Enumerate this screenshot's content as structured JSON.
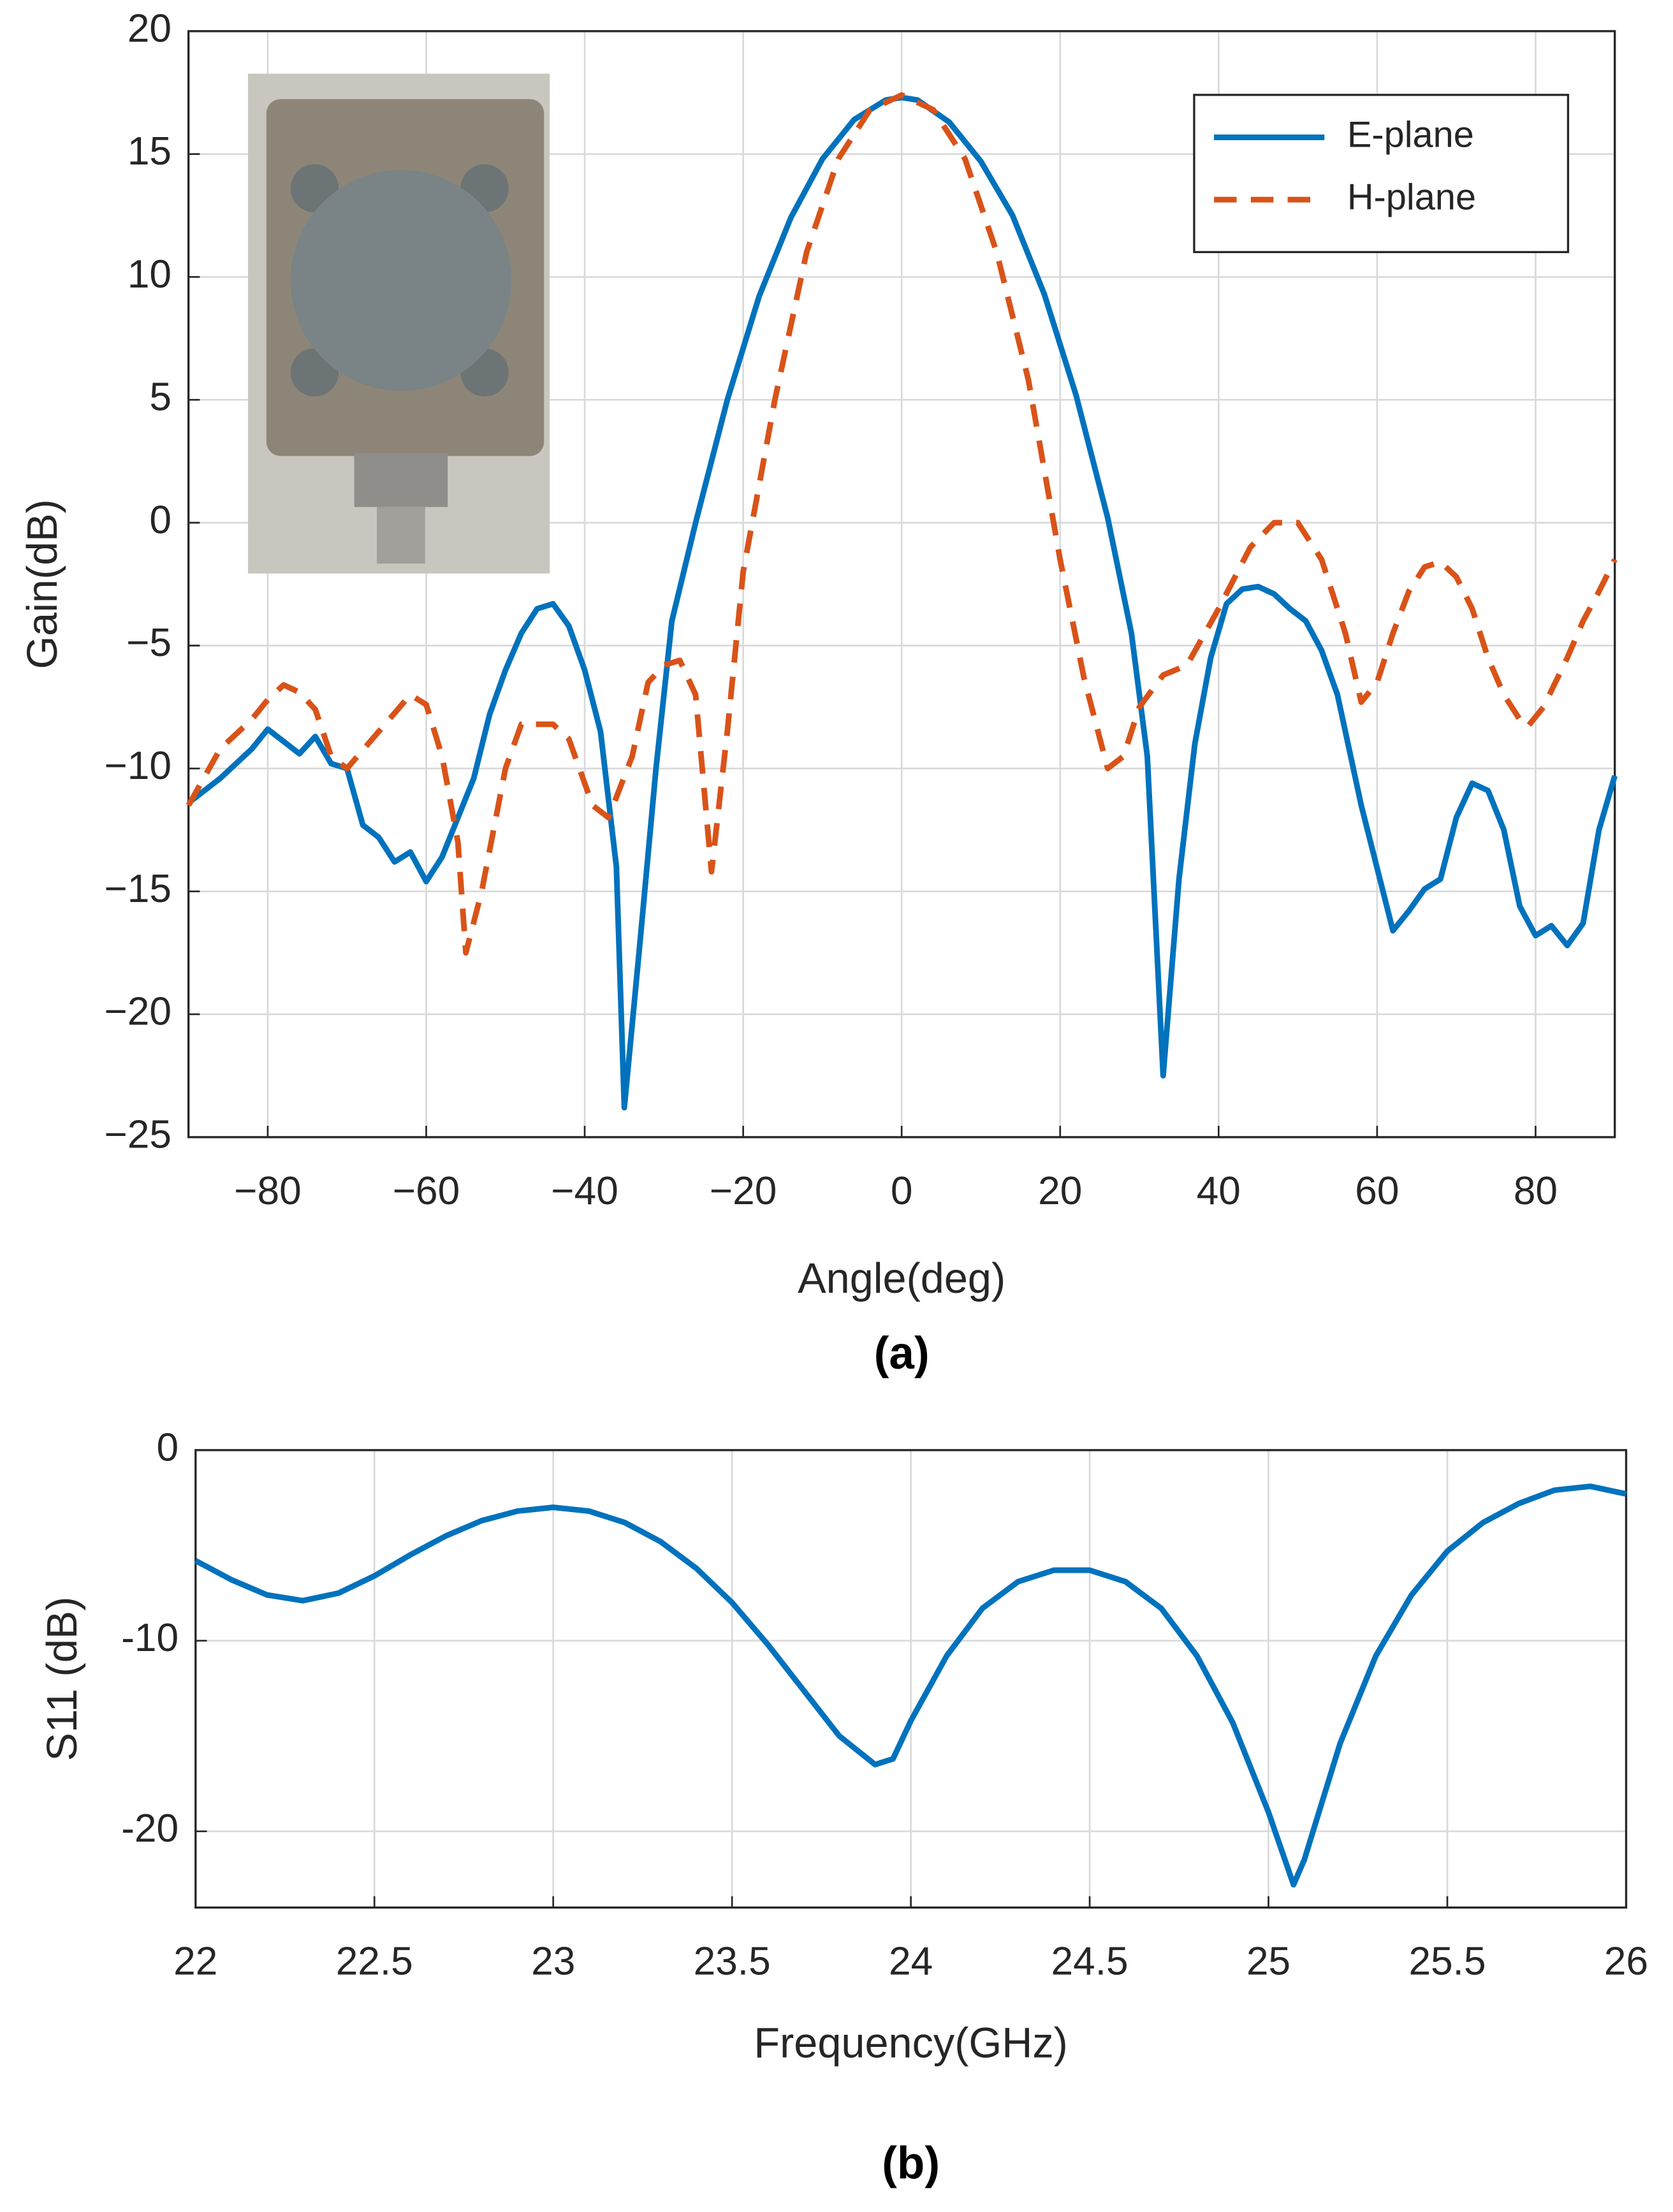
{
  "chart_data": [
    {
      "type": "line",
      "xlabel": "Angle(deg)",
      "ylabel": "Gain(dB)",
      "caption": "(a)",
      "xlim": [
        -90,
        90
      ],
      "ylim": [
        -25,
        20
      ],
      "xticks": [
        {
          "value": -80,
          "label": "−80"
        },
        {
          "value": -60,
          "label": "−60"
        },
        {
          "value": -40,
          "label": "−40"
        },
        {
          "value": -20,
          "label": "−20"
        },
        0,
        20,
        40,
        60,
        80
      ],
      "yticks": [
        {
          "value": -25,
          "label": "−25"
        },
        {
          "value": -20,
          "label": "−20"
        },
        {
          "value": -15,
          "label": "−15"
        },
        {
          "value": -10,
          "label": "−10"
        },
        {
          "value": -5,
          "label": "−5"
        },
        0,
        5,
        10,
        15,
        20
      ],
      "grid": true,
      "legend": "upper right",
      "series": [
        {
          "name": "E-plane",
          "color": "#0072bd",
          "dash": false,
          "x": [
            -90,
            -86,
            -82,
            -80,
            -76,
            -74,
            -72,
            -70,
            -68,
            -66,
            -64,
            -62,
            -60,
            -58,
            -56,
            -54,
            -52,
            -50,
            -48,
            -46,
            -44,
            -42,
            -40,
            -38,
            -36,
            -35,
            -33,
            -31,
            -29,
            -26,
            -22,
            -18,
            -14,
            -10,
            -6,
            -2,
            0,
            2,
            6,
            10,
            14,
            18,
            22,
            26,
            29,
            31,
            33,
            35,
            37,
            39,
            41,
            43,
            45,
            47,
            49,
            51,
            53,
            55,
            58,
            62,
            64,
            66,
            68,
            70,
            72,
            74,
            76,
            78,
            80,
            82,
            84,
            86,
            88,
            90
          ],
          "values": [
            -11.4,
            -10.4,
            -9.2,
            -8.4,
            -9.4,
            -8.7,
            -9.8,
            -10.0,
            -12.3,
            -12.8,
            -13.8,
            -13.4,
            -14.6,
            -13.6,
            -12.0,
            -10.4,
            -7.8,
            -6.0,
            -4.5,
            -3.5,
            -3.3,
            -4.2,
            -6.0,
            -8.5,
            -14,
            -23.8,
            -17,
            -10,
            -4,
            0,
            5,
            9.2,
            12.4,
            14.8,
            16.4,
            17.2,
            17.3,
            17.2,
            16.3,
            14.7,
            12.5,
            9.3,
            5.2,
            0.2,
            -4.5,
            -9.5,
            -22.5,
            -14.5,
            -9,
            -5.5,
            -3.3,
            -2.7,
            -2.6,
            -2.9,
            -3.5,
            -4,
            -5.2,
            -7,
            -11.5,
            -16.6,
            -15.8,
            -14.9,
            -14.5,
            -12,
            -10.6,
            -10.9,
            -12.5,
            -15.6,
            -16.8,
            -16.4,
            -17.2,
            -16.3,
            -12.5,
            -10.3
          ]
        },
        {
          "name": "H-plane",
          "color": "#d95319",
          "dash": true,
          "x": [
            -90,
            -86,
            -82,
            -80,
            -78,
            -76,
            -74,
            -72,
            -70,
            -66,
            -62,
            -60,
            -58,
            -56,
            -55,
            -53,
            -50,
            -48,
            -44,
            -42,
            -39,
            -37,
            -34,
            -32,
            -30,
            -28,
            -26,
            -24,
            -22,
            -20,
            -16,
            -12,
            -8,
            -4,
            0,
            4,
            8,
            12,
            16,
            20,
            23,
            26,
            28,
            30,
            33,
            36,
            40,
            44,
            47,
            50,
            53,
            56,
            58,
            60,
            62,
            64,
            66,
            68,
            70,
            72,
            74,
            76,
            78,
            79,
            81,
            84,
            86,
            88,
            90
          ],
          "values": [
            -11.5,
            -9.2,
            -8.0,
            -7.2,
            -6.6,
            -6.9,
            -7.6,
            -9.5,
            -10,
            -8.5,
            -7.0,
            -7.4,
            -9.5,
            -13,
            -17.5,
            -15,
            -10,
            -8.2,
            -8.2,
            -8.8,
            -11.5,
            -12,
            -9.5,
            -6.5,
            -5.8,
            -5.6,
            -7,
            -14.2,
            -8.5,
            -2,
            5,
            11,
            14.8,
            16.8,
            17.4,
            16.8,
            14.8,
            11,
            5.8,
            -1.5,
            -6.3,
            -10,
            -9.5,
            -7.5,
            -6.2,
            -5.8,
            -3.5,
            -1,
            0,
            0,
            -1.5,
            -4.5,
            -7.3,
            -6.5,
            -4.5,
            -2.8,
            -1.8,
            -1.6,
            -2.2,
            -3.5,
            -5.5,
            -7,
            -8,
            -8.3,
            -7.5,
            -5.5,
            -4,
            -2.8,
            -1.5
          ]
        }
      ]
    },
    {
      "type": "line",
      "xlabel": "Frequency(GHz)",
      "ylabel": "S11 (dB)",
      "caption": "(b)",
      "xlim": [
        22,
        26
      ],
      "ylim": [
        -24,
        0
      ],
      "xticks": [
        22,
        22.5,
        23,
        23.5,
        24,
        24.5,
        25,
        25.5,
        26
      ],
      "yticks": [
        -20,
        -10,
        0
      ],
      "grid": true,
      "series": [
        {
          "color": "#0072bd",
          "dash": false,
          "x": [
            22,
            22.1,
            22.2,
            22.3,
            22.4,
            22.5,
            22.6,
            22.7,
            22.8,
            22.9,
            23,
            23.1,
            23.2,
            23.3,
            23.4,
            23.5,
            23.6,
            23.7,
            23.8,
            23.9,
            23.95,
            24,
            24.1,
            24.2,
            24.3,
            24.4,
            24.5,
            24.6,
            24.7,
            24.8,
            24.9,
            25,
            25.07,
            25.1,
            25.2,
            25.3,
            25.4,
            25.5,
            25.6,
            25.7,
            25.8,
            25.9,
            26
          ],
          "values": [
            -5.8,
            -6.8,
            -7.6,
            -7.9,
            -7.5,
            -6.6,
            -5.5,
            -4.5,
            -3.7,
            -3.2,
            -3.0,
            -3.2,
            -3.8,
            -4.8,
            -6.2,
            -8.0,
            -10.2,
            -12.6,
            -15.0,
            -16.5,
            -16.2,
            -14.2,
            -10.8,
            -8.3,
            -6.9,
            -6.3,
            -6.3,
            -6.9,
            -8.3,
            -10.8,
            -14.3,
            -19,
            -22.8,
            -21.5,
            -15.4,
            -10.8,
            -7.6,
            -5.3,
            -3.8,
            -2.8,
            -2.1,
            -1.9,
            -2.3
          ]
        }
      ]
    }
  ]
}
